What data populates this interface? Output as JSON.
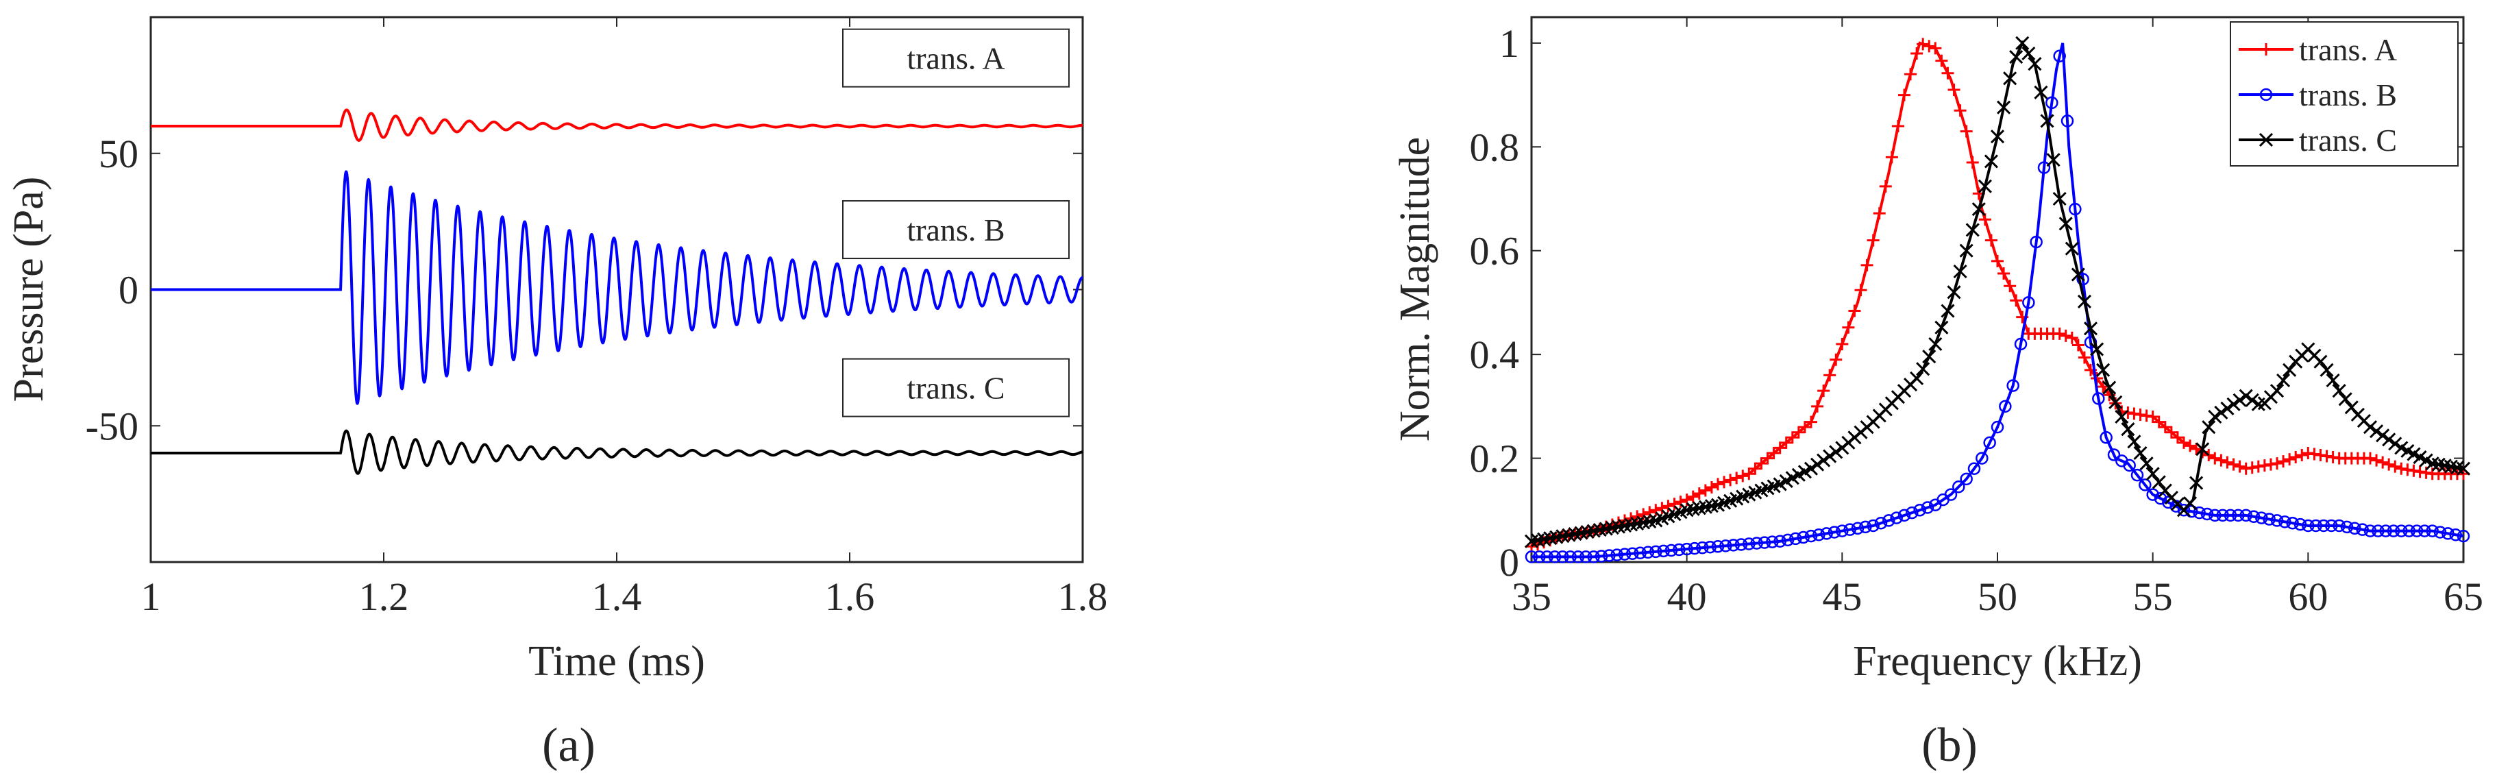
{
  "chart_data": [
    {
      "panel": "a",
      "type": "line",
      "caption": "(a)",
      "xlabel": "Time (ms)",
      "ylabel": "Pressure (Pa)",
      "xlim": [
        1,
        1.8
      ],
      "ylim": [
        -100,
        100
      ],
      "xticks": [
        "1",
        "1.2",
        "1.4",
        "1.6",
        "1.8"
      ],
      "yticks": [
        "-50",
        "0",
        "50"
      ],
      "xtick_values": [
        1,
        1.2,
        1.4,
        1.6,
        1.8
      ],
      "ytick_values": [
        -50,
        0,
        50
      ],
      "series": [
        {
          "name": "trans. A",
          "color": "#ff0000",
          "offset": 60,
          "onset": 1.163,
          "amplitude": 6,
          "frequency_kHz": 47.5,
          "decay_per_ms": 12,
          "floor_amplitude": 0.3
        },
        {
          "name": "trans. B",
          "color": "#0000ff",
          "offset": 0,
          "onset": 1.163,
          "amplitude": 44,
          "frequency_kHz": 52.2,
          "decay_per_ms": 3.6,
          "floor_amplitude": 0
        },
        {
          "name": "trans. C",
          "color": "#000000",
          "offset": -60,
          "onset": 1.163,
          "amplitude": 8,
          "frequency_kHz": 50.5,
          "decay_per_ms": 9,
          "floor_amplitude": 0.5
        }
      ],
      "labels": [
        "trans. A",
        "trans. B",
        "trans. C"
      ]
    },
    {
      "panel": "b",
      "type": "line",
      "caption": "(b)",
      "xlabel": "Frequency (kHz)",
      "ylabel": "Norm. Magnitude",
      "xlim": [
        35,
        65
      ],
      "ylim": [
        0,
        1.05
      ],
      "xticks": [
        "35",
        "40",
        "45",
        "50",
        "55",
        "60",
        "65"
      ],
      "yticks": [
        "0",
        "0.2",
        "0.4",
        "0.6",
        "0.8",
        "1"
      ],
      "xtick_values": [
        35,
        40,
        45,
        50,
        55,
        60,
        65
      ],
      "ytick_values": [
        0,
        0.2,
        0.4,
        0.6,
        0.8,
        1
      ],
      "legend": {
        "position": "top-right",
        "entries": [
          "trans. A",
          "trans. B",
          "trans. C"
        ]
      },
      "series": [
        {
          "name": "trans. A",
          "color": "#ff0000",
          "marker": "plus",
          "x": [
            35,
            36,
            37,
            38,
            39,
            40,
            41,
            42,
            43,
            44,
            45,
            45.5,
            46,
            46.5,
            47,
            47.5,
            48,
            48.5,
            49,
            49.5,
            50,
            50.5,
            51,
            51.5,
            52,
            52.5,
            53,
            54,
            55,
            56,
            57,
            58,
            59,
            60,
            61,
            62,
            63,
            64,
            65
          ],
          "y": [
            0.03,
            0.05,
            0.06,
            0.08,
            0.1,
            0.12,
            0.15,
            0.17,
            0.22,
            0.27,
            0.42,
            0.5,
            0.62,
            0.75,
            0.9,
            1.0,
            0.99,
            0.93,
            0.83,
            0.68,
            0.58,
            0.52,
            0.44,
            0.44,
            0.44,
            0.43,
            0.37,
            0.29,
            0.28,
            0.23,
            0.2,
            0.18,
            0.19,
            0.21,
            0.2,
            0.2,
            0.18,
            0.17,
            0.17
          ]
        },
        {
          "name": "trans. B",
          "color": "#0000ff",
          "marker": "circle",
          "x": [
            35,
            37,
            39,
            41,
            43,
            45,
            46,
            47,
            48,
            48.5,
            49,
            49.5,
            50,
            50.5,
            51,
            51.3,
            51.6,
            51.9,
            52.1,
            52.3,
            52.6,
            52.9,
            53.2,
            53.5,
            53.8,
            54.2,
            55,
            56,
            57,
            58,
            59,
            60,
            61,
            62,
            63,
            64,
            65
          ],
          "y": [
            0.01,
            0.01,
            0.02,
            0.03,
            0.04,
            0.06,
            0.07,
            0.09,
            0.11,
            0.13,
            0.16,
            0.2,
            0.26,
            0.34,
            0.5,
            0.64,
            0.82,
            0.95,
            1.0,
            0.8,
            0.62,
            0.47,
            0.33,
            0.24,
            0.2,
            0.19,
            0.13,
            0.1,
            0.09,
            0.09,
            0.08,
            0.07,
            0.07,
            0.06,
            0.06,
            0.06,
            0.05
          ]
        },
        {
          "name": "trans. C",
          "color": "#000000",
          "marker": "x",
          "x": [
            35,
            36,
            37,
            38,
            39,
            40,
            41,
            42,
            43,
            44,
            45,
            46,
            47,
            47.5,
            48,
            48.5,
            49,
            49.5,
            50,
            50.5,
            50.8,
            51.2,
            51.6,
            52,
            52.5,
            53,
            53.5,
            54,
            54.5,
            55,
            55.5,
            56,
            56.3,
            56.7,
            57,
            57.5,
            58,
            58.5,
            59,
            59.5,
            60,
            60.5,
            61,
            61.5,
            62,
            63,
            64,
            65
          ],
          "y": [
            0.04,
            0.05,
            0.06,
            0.07,
            0.08,
            0.1,
            0.11,
            0.13,
            0.15,
            0.18,
            0.22,
            0.27,
            0.33,
            0.36,
            0.42,
            0.5,
            0.6,
            0.7,
            0.82,
            0.96,
            1.0,
            0.96,
            0.85,
            0.7,
            0.58,
            0.45,
            0.35,
            0.28,
            0.22,
            0.17,
            0.13,
            0.1,
            0.12,
            0.25,
            0.28,
            0.3,
            0.32,
            0.3,
            0.33,
            0.38,
            0.41,
            0.38,
            0.33,
            0.29,
            0.26,
            0.22,
            0.19,
            0.18
          ]
        }
      ]
    }
  ]
}
